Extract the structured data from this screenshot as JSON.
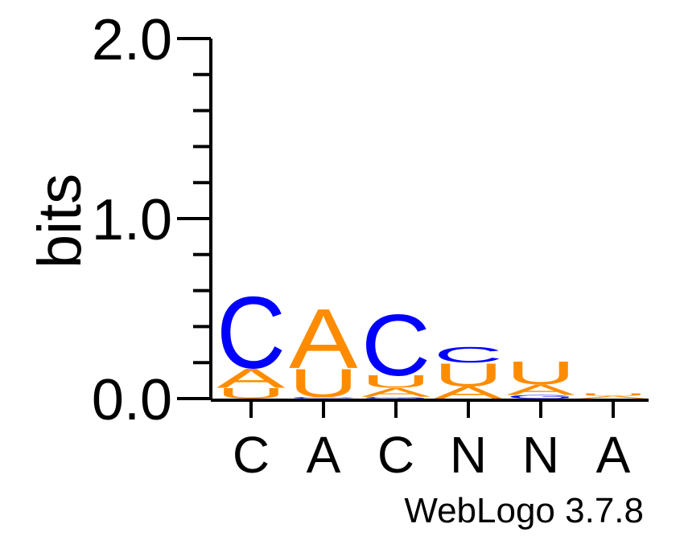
{
  "chart_data": {
    "type": "sequence-logo",
    "ylabel": "bits",
    "ylim": [
      0,
      2
    ],
    "yticks": [
      "0.0",
      "1.0",
      "2.0"
    ],
    "categories": [
      "C",
      "A",
      "C",
      "N",
      "N",
      "A"
    ],
    "footer": "WebLogo 3.7.8",
    "colors": {
      "C": "#0000ff",
      "G": "#0000ff",
      "A": "#ff8c00",
      "U": "#ff8c00"
    },
    "columns": [
      {
        "label": "C",
        "stack": [
          {
            "letter": "U",
            "bits": 0.06
          },
          {
            "letter": "A",
            "bits": 0.11
          },
          {
            "letter": "C",
            "bits": 0.41
          }
        ]
      },
      {
        "label": "A",
        "stack": [
          {
            "letter": "C",
            "bits": 0.01
          },
          {
            "letter": "U",
            "bits": 0.16
          },
          {
            "letter": "A",
            "bits": 0.34
          }
        ]
      },
      {
        "label": "C",
        "stack": [
          {
            "letter": "G",
            "bits": 0.01
          },
          {
            "letter": "A",
            "bits": 0.05
          },
          {
            "letter": "U",
            "bits": 0.07
          },
          {
            "letter": "C",
            "bits": 0.35
          }
        ]
      },
      {
        "label": "N",
        "stack": [
          {
            "letter": "A",
            "bits": 0.07
          },
          {
            "letter": "U",
            "bits": 0.13
          },
          {
            "letter": "C",
            "bits": 0.09
          }
        ]
      },
      {
        "label": "N",
        "stack": [
          {
            "letter": "G",
            "bits": 0.02
          },
          {
            "letter": "A",
            "bits": 0.06
          },
          {
            "letter": "U",
            "bits": 0.13
          }
        ]
      },
      {
        "label": "A",
        "stack": [
          {
            "letter": "A",
            "bits": 0.015
          },
          {
            "letter": "U",
            "bits": 0.015
          }
        ]
      }
    ]
  }
}
